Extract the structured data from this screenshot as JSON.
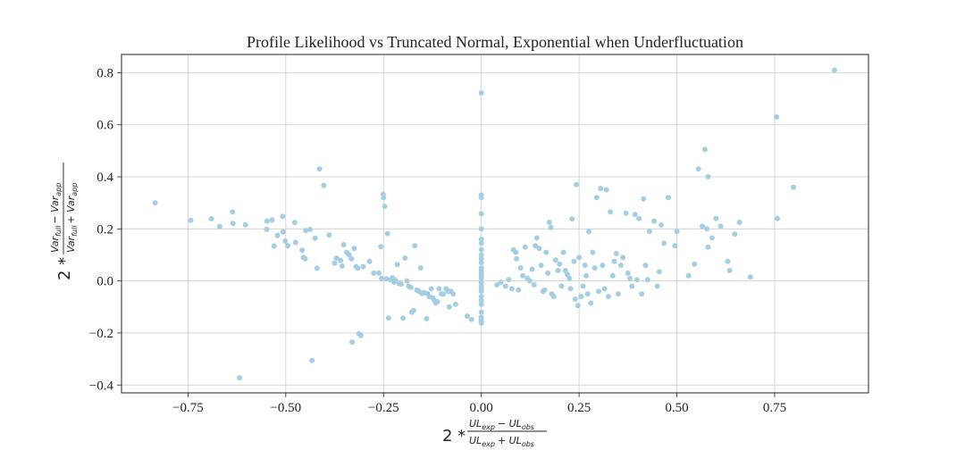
{
  "chart_data": {
    "type": "scatter",
    "title": "Profile Likelihood vs Truncated Normal, Exponential when Underfluctuation",
    "xlabel": {
      "prefix": "2 *",
      "numerator": "UL",
      "numerator_sub1": "exp",
      "numerator_minus": "− UL",
      "numerator_sub2": "obs",
      "denominator": "UL",
      "denominator_sub1": "exp",
      "denominator_plus": "+ UL",
      "denominator_sub2": "obs"
    },
    "ylabel": {
      "prefix": "2 *",
      "numerator": "Var",
      "numerator_sub1": "full",
      "numerator_minus": "− Var",
      "numerator_sub2": "app",
      "denominator": "Var",
      "denominator_sub1": "full",
      "denominator_plus": "+ Var",
      "denominator_sub2": "app"
    },
    "xlim": [
      -0.92,
      0.99
    ],
    "ylim": [
      -0.43,
      0.87
    ],
    "xticks": [
      -0.75,
      -0.5,
      -0.25,
      0.0,
      0.25,
      0.5,
      0.75
    ],
    "xtick_labels": [
      "−0.75",
      "−0.50",
      "−0.25",
      "0.00",
      "0.25",
      "0.50",
      "0.75"
    ],
    "yticks": [
      -0.4,
      -0.2,
      0.0,
      0.2,
      0.4,
      0.6,
      0.8
    ],
    "ytick_labels": [
      "−0.4",
      "−0.2",
      "0.0",
      "0.2",
      "0.4",
      "0.6",
      "0.8"
    ],
    "grid": true,
    "marker_color": "#a6cee3",
    "points": [
      [
        -0.834,
        0.3
      ],
      [
        -0.743,
        0.233
      ],
      [
        -0.69,
        0.239
      ],
      [
        -0.669,
        0.209
      ],
      [
        -0.636,
        0.265
      ],
      [
        -0.635,
        0.221
      ],
      [
        -0.603,
        0.216
      ],
      [
        -0.618,
        -0.372
      ],
      [
        -0.548,
        0.23
      ],
      [
        -0.535,
        0.234
      ],
      [
        -0.549,
        0.198
      ],
      [
        -0.53,
        0.134
      ],
      [
        -0.521,
        0.175
      ],
      [
        -0.508,
        0.248
      ],
      [
        -0.507,
        0.188
      ],
      [
        -0.501,
        0.153
      ],
      [
        -0.495,
        0.135
      ],
      [
        -0.477,
        0.224
      ],
      [
        -0.475,
        0.148
      ],
      [
        -0.458,
        0.118
      ],
      [
        -0.455,
        0.09
      ],
      [
        -0.45,
        0.085
      ],
      [
        -0.449,
        0.194
      ],
      [
        -0.438,
        0.198
      ],
      [
        -0.433,
        -0.306
      ],
      [
        -0.425,
        0.164
      ],
      [
        -0.42,
        0.049
      ],
      [
        -0.414,
        0.43
      ],
      [
        -0.403,
        0.367
      ],
      [
        -0.389,
        0.176
      ],
      [
        -0.375,
        0.068
      ],
      [
        -0.37,
        0.088
      ],
      [
        -0.36,
        0.079
      ],
      [
        -0.356,
        0.057
      ],
      [
        -0.352,
        0.139
      ],
      [
        -0.344,
        0.11
      ],
      [
        -0.338,
        0.1
      ],
      [
        -0.332,
        0.085
      ],
      [
        -0.33,
        -0.235
      ],
      [
        -0.325,
        0.125
      ],
      [
        -0.32,
        0.055
      ],
      [
        -0.316,
        0.049
      ],
      [
        -0.313,
        -0.203
      ],
      [
        -0.308,
        -0.21
      ],
      [
        -0.302,
        0.055
      ],
      [
        -0.286,
        0.075
      ],
      [
        -0.275,
        0.03
      ],
      [
        -0.262,
        0.03
      ],
      [
        -0.257,
        0.132
      ],
      [
        -0.255,
        0.01
      ],
      [
        -0.251,
        0.333
      ],
      [
        -0.25,
        0.32
      ],
      [
        -0.247,
        0.287
      ],
      [
        -0.243,
        0.008
      ],
      [
        -0.24,
        0.182
      ],
      [
        -0.237,
        -0.143
      ],
      [
        -0.233,
        0.005
      ],
      [
        -0.227,
        0.012
      ],
      [
        -0.223,
        -0.005
      ],
      [
        -0.22,
        0.003
      ],
      [
        -0.215,
        0.063
      ],
      [
        -0.21,
        -0.01
      ],
      [
        -0.205,
        -0.012
      ],
      [
        -0.2,
        -0.143
      ],
      [
        -0.195,
        0.088
      ],
      [
        -0.19,
        0.0
      ],
      [
        -0.186,
        -0.02
      ],
      [
        -0.18,
        -0.025
      ],
      [
        -0.178,
        -0.12
      ],
      [
        -0.173,
        -0.113
      ],
      [
        -0.17,
        0.135
      ],
      [
        -0.165,
        -0.035
      ],
      [
        -0.16,
        -0.04
      ],
      [
        -0.155,
        0.05
      ],
      [
        -0.152,
        -0.048
      ],
      [
        -0.147,
        -0.045
      ],
      [
        -0.14,
        -0.145
      ],
      [
        -0.138,
        -0.048
      ],
      [
        -0.133,
        -0.06
      ],
      [
        -0.128,
        -0.03
      ],
      [
        -0.124,
        -0.065
      ],
      [
        -0.12,
        -0.075
      ],
      [
        -0.116,
        -0.085
      ],
      [
        -0.112,
        -0.08
      ],
      [
        -0.108,
        -0.03
      ],
      [
        -0.102,
        -0.05
      ],
      [
        -0.097,
        -0.05
      ],
      [
        -0.09,
        -0.03
      ],
      [
        -0.085,
        -0.04
      ],
      [
        -0.082,
        -0.1
      ],
      [
        -0.078,
        -0.04
      ],
      [
        -0.072,
        -0.05
      ],
      [
        -0.066,
        -0.09
      ],
      [
        -0.036,
        -0.135
      ],
      [
        -0.025,
        -0.148
      ],
      [
        0.0,
        0.722
      ],
      [
        0.0,
        0.33
      ],
      [
        0.0,
        0.32
      ],
      [
        0.0,
        0.258
      ],
      [
        0.0,
        0.2
      ],
      [
        0.0,
        0.16
      ],
      [
        0.0,
        0.145
      ],
      [
        0.0,
        0.12
      ],
      [
        0.0,
        0.1
      ],
      [
        0.0,
        0.085
      ],
      [
        0.0,
        0.07
      ],
      [
        0.0,
        0.05
      ],
      [
        0.0,
        0.04
      ],
      [
        0.0,
        0.03
      ],
      [
        0.0,
        0.02
      ],
      [
        0.0,
        0.01
      ],
      [
        0.0,
        -0.005
      ],
      [
        0.0,
        -0.02
      ],
      [
        0.0,
        -0.03
      ],
      [
        0.0,
        -0.04
      ],
      [
        0.0,
        -0.06
      ],
      [
        0.0,
        -0.075
      ],
      [
        0.0,
        -0.09
      ],
      [
        0.0,
        -0.12
      ],
      [
        0.0,
        -0.14
      ],
      [
        0.0,
        -0.155
      ],
      [
        0.0,
        -0.162
      ],
      [
        0.04,
        -0.015
      ],
      [
        0.05,
        -0.005
      ],
      [
        0.062,
        -0.02
      ],
      [
        0.07,
        0.005
      ],
      [
        0.078,
        -0.03
      ],
      [
        0.082,
        0.12
      ],
      [
        0.088,
        0.11
      ],
      [
        0.09,
        0.085
      ],
      [
        0.095,
        -0.035
      ],
      [
        0.1,
        0.05
      ],
      [
        0.106,
        0.02
      ],
      [
        0.112,
        0.13
      ],
      [
        0.118,
        0.01
      ],
      [
        0.124,
        0.0
      ],
      [
        0.13,
        0.045
      ],
      [
        0.135,
        -0.015
      ],
      [
        0.138,
        0.135
      ],
      [
        0.142,
        0.165
      ],
      [
        0.148,
        0.125
      ],
      [
        0.153,
        0.06
      ],
      [
        0.158,
        -0.04
      ],
      [
        0.162,
        -0.035
      ],
      [
        0.166,
        0.11
      ],
      [
        0.17,
        0.03
      ],
      [
        0.174,
        0.225
      ],
      [
        0.178,
        0.205
      ],
      [
        0.18,
        -0.05
      ],
      [
        0.185,
        -0.06
      ],
      [
        0.19,
        0.08
      ],
      [
        0.196,
        0.04
      ],
      [
        0.2,
        0.065
      ],
      [
        0.205,
        -0.02
      ],
      [
        0.21,
        0.11
      ],
      [
        0.215,
        0.04
      ],
      [
        0.22,
        0.025
      ],
      [
        0.225,
        0.01
      ],
      [
        0.228,
        -0.03
      ],
      [
        0.232,
        0.238
      ],
      [
        0.237,
        0.075
      ],
      [
        0.24,
        -0.07
      ],
      [
        0.243,
        0.37
      ],
      [
        0.247,
        -0.095
      ],
      [
        0.25,
        0.09
      ],
      [
        0.255,
        -0.06
      ],
      [
        0.26,
        -0.02
      ],
      [
        0.265,
        0.06
      ],
      [
        0.268,
        0.02
      ],
      [
        0.272,
        -0.05
      ],
      [
        0.275,
        0.19
      ],
      [
        0.28,
        -0.085
      ],
      [
        0.285,
        0.11
      ],
      [
        0.29,
        0.05
      ],
      [
        0.295,
        0.32
      ],
      [
        0.3,
        -0.04
      ],
      [
        0.305,
        0.355
      ],
      [
        0.31,
        0.06
      ],
      [
        0.315,
        -0.03
      ],
      [
        0.32,
        0.35
      ],
      [
        0.325,
        -0.06
      ],
      [
        0.33,
        0.265
      ],
      [
        0.336,
        0.02
      ],
      [
        0.34,
        0.075
      ],
      [
        0.345,
        0.105
      ],
      [
        0.35,
        -0.05
      ],
      [
        0.357,
        0.06
      ],
      [
        0.362,
        0.09
      ],
      [
        0.37,
        0.26
      ],
      [
        0.375,
        0.03
      ],
      [
        0.38,
        0.01
      ],
      [
        0.385,
        -0.02
      ],
      [
        0.393,
        0.255
      ],
      [
        0.398,
        0.005
      ],
      [
        0.403,
        0.24
      ],
      [
        0.41,
        -0.05
      ],
      [
        0.415,
        0.315
      ],
      [
        0.42,
        0.06
      ],
      [
        0.425,
        0.005
      ],
      [
        0.43,
        0.19
      ],
      [
        0.442,
        0.23
      ],
      [
        0.45,
        -0.02
      ],
      [
        0.455,
        0.035
      ],
      [
        0.46,
        0.215
      ],
      [
        0.467,
        0.145
      ],
      [
        0.478,
        0.32
      ],
      [
        0.495,
        0.135
      ],
      [
        0.5,
        0.19
      ],
      [
        0.53,
        0.02
      ],
      [
        0.545,
        0.065
      ],
      [
        0.555,
        0.43
      ],
      [
        0.565,
        0.21
      ],
      [
        0.572,
        0.505
      ],
      [
        0.577,
        0.2
      ],
      [
        0.58,
        0.4
      ],
      [
        0.59,
        0.165
      ],
      [
        0.6,
        0.24
      ],
      [
        0.612,
        0.21
      ],
      [
        0.63,
        0.075
      ],
      [
        0.635,
        0.04
      ],
      [
        0.648,
        0.18
      ],
      [
        0.66,
        0.225
      ],
      [
        0.688,
        0.015
      ],
      [
        0.755,
        0.63
      ],
      [
        0.757,
        0.24
      ],
      [
        0.798,
        0.36
      ],
      [
        0.903,
        0.81
      ],
      [
        0.58,
        0.13
      ]
    ]
  }
}
